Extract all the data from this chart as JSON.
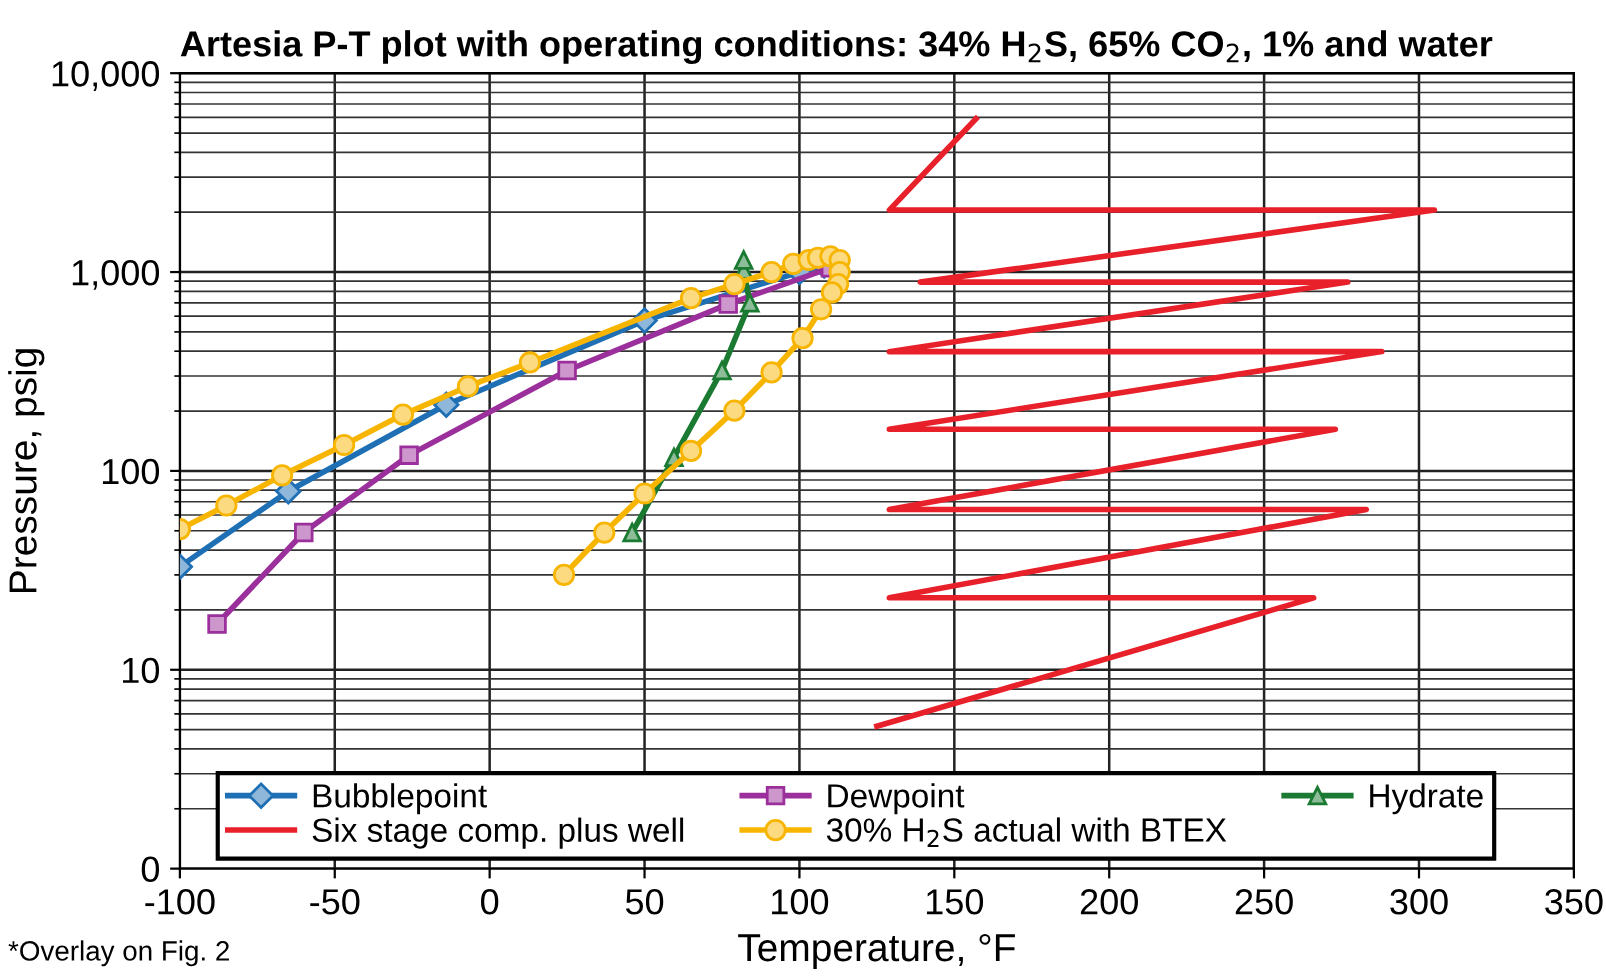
{
  "chart_data": {
    "type": "line",
    "title": "Artesia P-T plot with operating conditions: 34% H$_{2}$S, 65% CO$_{2}$, 1% and water",
    "xlabel": "Temperature, °F",
    "ylabel": "Pressure, psig",
    "log": "y",
    "xlim": [
      -100,
      350
    ],
    "ylim": [
      0,
      10000
    ],
    "xticks": [
      -100,
      -50,
      0,
      50,
      100,
      150,
      200,
      250,
      300,
      350
    ],
    "yticks": [
      0,
      10,
      100,
      {
        "value": 1000,
        "label": "1,000"
      },
      {
        "value": 10000,
        "label": "10,000"
      }
    ],
    "grid": true,
    "legend": "bottom",
    "line_style": "solid",
    "annotations": [
      "*Overlay on Fig. 2"
    ],
    "series": [
      {
        "name": "Bubblepoint",
        "color": "#1f6fb5",
        "marker": "diamond",
        "x": [
          -100,
          -65,
          -14,
          50,
          100,
          108
        ],
        "values": [
          33,
          79,
          215,
          570,
          1000,
          1080
        ]
      },
      {
        "name": "Dewpoint",
        "color": "#9b2f9b",
        "marker": "square",
        "x": [
          -88,
          -60,
          -26,
          25,
          77,
          110
        ],
        "values": [
          17,
          49,
          120,
          320,
          690,
          1050
        ]
      },
      {
        "name": "Hydrate",
        "color": "#1a7a32",
        "marker": "triangle",
        "x": [
          46,
          59.5,
          75,
          84,
          82,
          82
        ],
        "values": [
          49,
          117,
          320,
          700,
          1020,
          1150
        ]
      },
      {
        "name": "Six stage comp. plus well",
        "color": "#e8202a",
        "marker": "none",
        "x": [
          125,
          266,
          129,
          283,
          129,
          273,
          129,
          288,
          129,
          277,
          139,
          305,
          129,
          157
        ],
        "values": [
          5.2,
          23,
          23,
          64,
          64,
          162,
          162,
          398,
          398,
          890,
          890,
          2050,
          2050,
          5900
        ]
      },
      {
        "name": "30% H$_{2}$S actual with BTEX",
        "color": "#f7b500",
        "marker": "circle",
        "x": [
          -100,
          -85,
          -67,
          -47,
          -28,
          -7,
          13,
          65,
          79,
          91,
          98,
          103,
          106,
          110,
          113,
          113,
          112.5,
          110.5,
          107,
          101,
          91,
          79,
          65,
          50,
          37,
          24
        ],
        "values": [
          51,
          67,
          95,
          135,
          192,
          266,
          351,
          740,
          870,
          1000,
          1100,
          1150,
          1180,
          1200,
          1150,
          1000,
          870,
          790,
          650,
          465,
          313,
          201,
          126,
          77,
          49,
          30
        ]
      }
    ]
  }
}
